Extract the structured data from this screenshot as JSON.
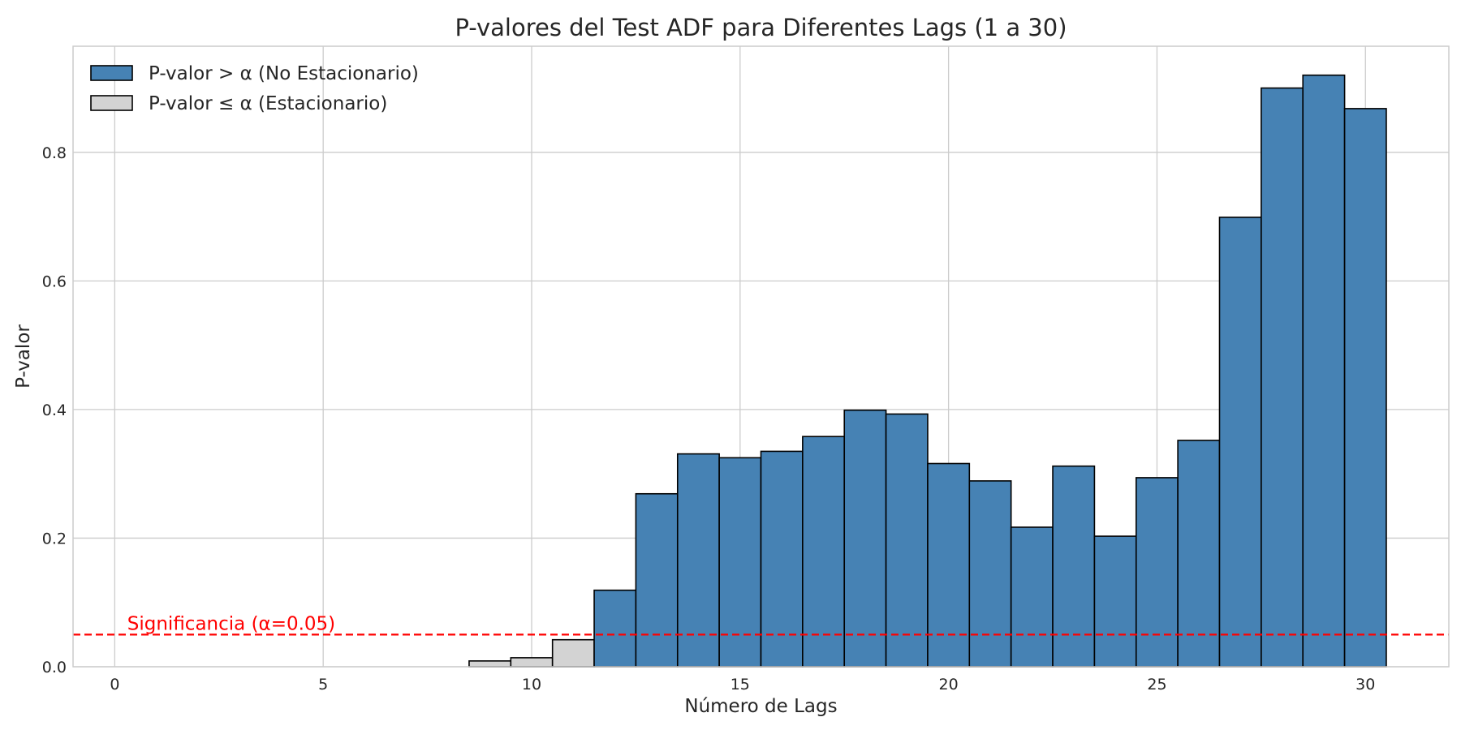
{
  "chart_data": {
    "type": "bar",
    "title": "P-valores del Test ADF para Diferentes Lags (1 a 30)",
    "xlabel": "Número de Lags",
    "ylabel": "P-valor",
    "x": [
      1,
      2,
      3,
      4,
      5,
      6,
      7,
      8,
      9,
      10,
      11,
      12,
      13,
      14,
      15,
      16,
      17,
      18,
      19,
      20,
      21,
      22,
      23,
      24,
      25,
      26,
      27,
      28,
      29,
      30
    ],
    "values": [
      0.0,
      0.0,
      0.0,
      0.0,
      0.0,
      0.0,
      0.0,
      0.0,
      0.009,
      0.014,
      0.042,
      0.119,
      0.269,
      0.331,
      0.325,
      0.335,
      0.358,
      0.399,
      0.393,
      0.316,
      0.289,
      0.217,
      0.312,
      0.203,
      0.294,
      0.352,
      0.699,
      0.9,
      0.92,
      0.868
    ],
    "alpha": 0.05,
    "xlim": [
      -1,
      32
    ],
    "ylim": [
      0,
      0.965
    ],
    "xticks": [
      0,
      5,
      10,
      15,
      20,
      25,
      30
    ],
    "yticks": [
      0.0,
      0.2,
      0.4,
      0.6,
      0.8
    ],
    "grid": true,
    "legend_position": "top-left",
    "legend": [
      {
        "label": "P-valor > α (No Estacionario)",
        "color": "#4682b4"
      },
      {
        "label": "P-valor ≤ α (Estacionario)",
        "color": "#d3d3d3"
      }
    ],
    "threshold_line": {
      "label": "Significancia (α=0.05)",
      "color": "#ff0000",
      "style": "dashed"
    },
    "colors": {
      "above": "#4682b4",
      "below": "#d3d3d3",
      "edge": "#000000",
      "grid": "#cccccc",
      "spine": "#cccccc"
    }
  }
}
